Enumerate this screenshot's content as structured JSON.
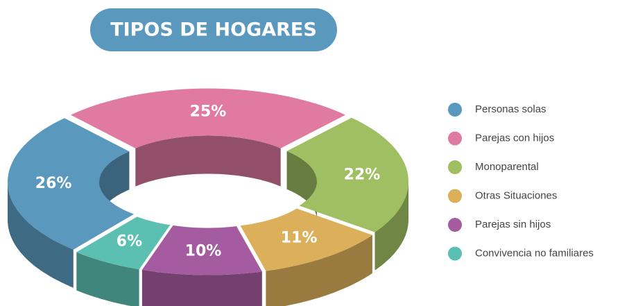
{
  "chart_data": {
    "type": "pie",
    "title": "TIPOS DE HOGARES",
    "categories": [
      "Personas solas",
      "Parejas con hijos",
      "Monoparental",
      "Otras Situaciones",
      "Parejas sin hijos",
      "Convivencia no familiares"
    ],
    "values": [
      26,
      25,
      22,
      11,
      10,
      6
    ],
    "value_labels": [
      "26%",
      "25%",
      "22%",
      "11%",
      "10%",
      "6%"
    ],
    "colors": [
      "#5a98bd",
      "#e07aa0",
      "#9fbf62",
      "#dcb05a",
      "#a45ba0",
      "#5bbfb2"
    ],
    "legend": "right"
  }
}
